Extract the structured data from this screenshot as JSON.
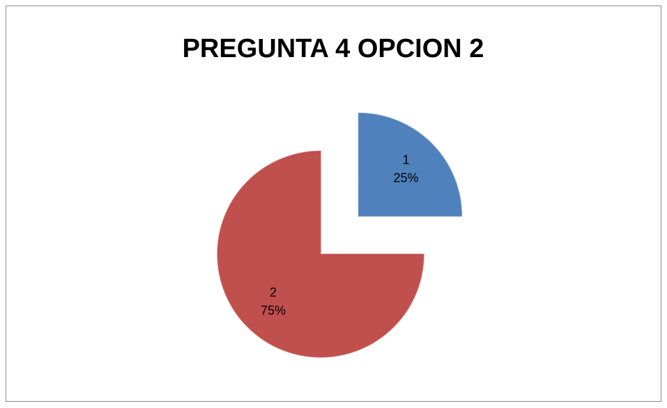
{
  "chart_data": {
    "type": "pie",
    "title": "PREGUNTA 4 OPCION 2",
    "categories": [
      "1",
      "2"
    ],
    "values": [
      25,
      75
    ],
    "value_labels": [
      "25%",
      "75%"
    ],
    "colors": [
      "#4f81bd",
      "#c0504d"
    ]
  }
}
